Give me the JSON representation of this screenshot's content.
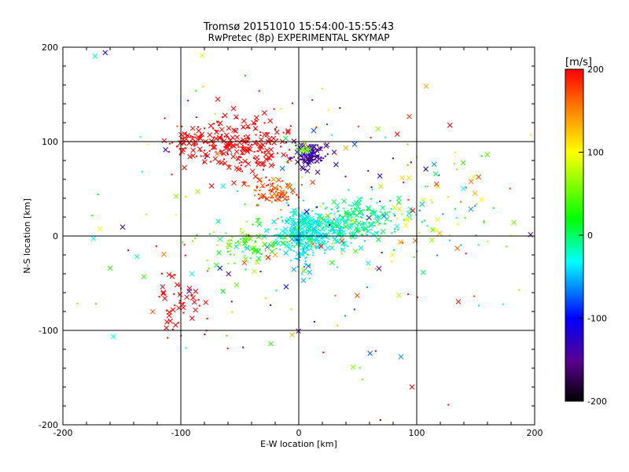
{
  "chart_data": {
    "type": "scatter",
    "title": "Tromsø 20151010 15:54:00-15:55:43",
    "subtitle": "RwPretec (8p) EXPERIMENTAL SKYMAP",
    "xlabel": "E-W location [km]",
    "ylabel": "N-S location [km]",
    "xlim": [
      -200,
      200
    ],
    "ylim": [
      -200,
      200
    ],
    "xticks": [
      "-200",
      "-100",
      "0",
      "100",
      "200"
    ],
    "yticks": [
      "-200",
      "-100",
      "0",
      "100",
      "200"
    ],
    "grid": true,
    "grid_values": [
      -100,
      0,
      100
    ],
    "colorbar": {
      "label": "[m/s]",
      "range": [
        -200,
        200
      ],
      "ticks": [
        "200",
        "100",
        "0",
        "-100",
        "-200"
      ],
      "colormap": [
        "#000000",
        "#7f00ff",
        "#0000ff",
        "#00ffff",
        "#00ff00",
        "#ffff00",
        "#ff0000"
      ]
    },
    "marker_legend": {
      "cross": "large x markers",
      "dot": "small point markers"
    },
    "clusters": [
      {
        "name": "north-west red cluster",
        "cx": -48,
        "cy": 95,
        "sx": 22,
        "sy": 18,
        "n": 260,
        "v": 200,
        "spread": 0
      },
      {
        "name": "west-edge red group",
        "cx": -95,
        "cy": 100,
        "sx": 6,
        "sy": 5,
        "n": 40,
        "v": 200,
        "spread": 0
      },
      {
        "name": "north-centre dark cluster",
        "cx": 8,
        "cy": 85,
        "sx": 8,
        "sy": 6,
        "n": 110,
        "v": -140,
        "spread": 60
      },
      {
        "name": "north-centre bright spot",
        "cx": 2,
        "cy": 92,
        "sx": 4,
        "sy": 3,
        "n": 25,
        "v": 60,
        "spread": 40
      },
      {
        "name": "diagonal red-orange band",
        "cx": -20,
        "cy": 45,
        "sx": 10,
        "sy": 6,
        "n": 80,
        "v": 170,
        "spread": 40
      },
      {
        "name": "central cyan cluster",
        "cx": 10,
        "cy": 5,
        "sx": 14,
        "sy": 10,
        "n": 300,
        "v": -30,
        "spread": 40
      },
      {
        "name": "east cyan cluster",
        "cx": 45,
        "cy": 15,
        "sx": 20,
        "sy": 10,
        "n": 200,
        "v": -10,
        "spread": 40
      },
      {
        "name": "central column",
        "cx": 2,
        "cy": -10,
        "sx": 5,
        "sy": 15,
        "n": 80,
        "v": -40,
        "spread": 40
      },
      {
        "name": "south-west green-yellow group",
        "cx": -45,
        "cy": -10,
        "sx": 18,
        "sy": 12,
        "n": 80,
        "v": 30,
        "spread": 90
      },
      {
        "name": "west red trail",
        "cx": -100,
        "cy": -65,
        "sx": 10,
        "sy": 20,
        "n": 50,
        "v": 200,
        "spread": 0
      },
      {
        "name": "east scattered",
        "cx": 110,
        "cy": 30,
        "sx": 40,
        "sy": 25,
        "n": 80,
        "v": 60,
        "spread": 260
      },
      {
        "name": "background scatter",
        "cx": 0,
        "cy": 10,
        "sx": 90,
        "sy": 80,
        "n": 220,
        "v": 40,
        "spread": 400
      }
    ]
  }
}
